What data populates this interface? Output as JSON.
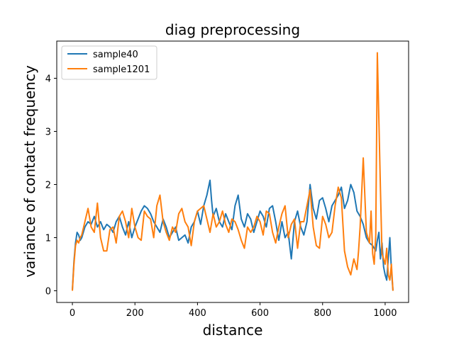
{
  "chart_data": {
    "type": "line",
    "title": "diag preprocessing",
    "xlabel": "distance",
    "ylabel": "variance of contact frequency",
    "xlim": [
      -50,
      1075
    ],
    "ylim": [
      -0.22,
      4.7
    ],
    "xticks": [
      0,
      200,
      400,
      600,
      800,
      1000
    ],
    "yticks": [
      0,
      1,
      2,
      3,
      4
    ],
    "grid": false,
    "legend_position": "upper-left",
    "series": [
      {
        "name": "sample40",
        "color": "#1f77b4",
        "x": [
          0,
          5,
          10,
          15,
          20,
          25,
          30,
          40,
          50,
          60,
          70,
          80,
          90,
          100,
          110,
          120,
          130,
          140,
          150,
          160,
          170,
          180,
          190,
          200,
          210,
          220,
          230,
          240,
          250,
          260,
          270,
          280,
          290,
          300,
          310,
          320,
          330,
          340,
          350,
          360,
          370,
          380,
          390,
          400,
          410,
          420,
          430,
          440,
          445,
          450,
          460,
          470,
          480,
          490,
          500,
          510,
          520,
          530,
          540,
          550,
          560,
          570,
          580,
          590,
          600,
          610,
          620,
          630,
          640,
          650,
          660,
          670,
          680,
          690,
          700,
          710,
          720,
          730,
          740,
          750,
          760,
          770,
          780,
          790,
          800,
          810,
          820,
          830,
          840,
          850,
          860,
          870,
          880,
          890,
          900,
          910,
          920,
          930,
          940,
          950,
          960,
          970,
          975,
          980,
          985,
          990,
          995,
          1000,
          1005,
          1010,
          1015,
          1020,
          1025
        ],
        "y": [
          0.02,
          0.55,
          0.9,
          1.1,
          1.05,
          0.95,
          1.0,
          1.2,
          1.3,
          1.25,
          1.4,
          1.2,
          1.3,
          1.15,
          1.25,
          1.2,
          1.1,
          1.3,
          1.4,
          1.2,
          1.05,
          1.3,
          1.0,
          1.2,
          1.35,
          1.5,
          1.6,
          1.55,
          1.45,
          1.3,
          1.2,
          1.1,
          1.35,
          1.2,
          1.0,
          1.1,
          1.2,
          0.95,
          1.0,
          1.05,
          0.9,
          1.2,
          1.3,
          1.5,
          1.25,
          1.6,
          1.8,
          2.08,
          1.7,
          1.4,
          1.55,
          1.3,
          1.2,
          1.45,
          1.3,
          1.15,
          1.6,
          1.8,
          1.35,
          1.2,
          1.45,
          1.35,
          1.1,
          1.3,
          1.5,
          1.4,
          1.2,
          1.55,
          1.6,
          1.3,
          0.95,
          1.3,
          1.0,
          1.1,
          0.6,
          1.3,
          1.5,
          1.2,
          1.05,
          1.3,
          2.0,
          1.55,
          1.35,
          1.7,
          1.75,
          1.55,
          1.3,
          1.6,
          1.7,
          1.8,
          1.95,
          1.55,
          1.7,
          2.0,
          1.85,
          1.5,
          1.4,
          1.25,
          1.0,
          0.9,
          0.85,
          0.75,
          0.95,
          1.1,
          0.6,
          0.9,
          0.45,
          0.3,
          0.2,
          0.6,
          1.0,
          0.4,
          0.0
        ]
      },
      {
        "name": "sample1201",
        "color": "#ff7f0e",
        "x": [
          0,
          5,
          10,
          15,
          20,
          25,
          30,
          40,
          50,
          60,
          70,
          80,
          90,
          100,
          110,
          120,
          130,
          140,
          150,
          160,
          170,
          180,
          190,
          200,
          210,
          220,
          230,
          240,
          250,
          260,
          270,
          280,
          290,
          300,
          310,
          320,
          330,
          340,
          350,
          360,
          370,
          380,
          390,
          400,
          410,
          420,
          430,
          440,
          450,
          460,
          470,
          480,
          490,
          500,
          510,
          520,
          530,
          540,
          550,
          560,
          570,
          580,
          590,
          600,
          610,
          620,
          630,
          640,
          650,
          660,
          670,
          680,
          690,
          700,
          710,
          720,
          730,
          740,
          750,
          760,
          770,
          780,
          790,
          800,
          810,
          820,
          830,
          840,
          850,
          860,
          870,
          880,
          890,
          900,
          910,
          915,
          920,
          930,
          940,
          950,
          955,
          960,
          965,
          970,
          975,
          980,
          985,
          990,
          1000,
          1005,
          1010,
          1015,
          1020,
          1025
        ],
        "y": [
          0.0,
          0.5,
          0.85,
          0.95,
          0.9,
          1.0,
          1.05,
          1.3,
          1.55,
          1.2,
          1.1,
          1.65,
          1.0,
          0.75,
          0.75,
          1.15,
          1.2,
          0.9,
          1.4,
          1.5,
          1.3,
          1.0,
          1.55,
          1.2,
          1.0,
          0.95,
          1.5,
          1.4,
          1.35,
          1.0,
          1.6,
          1.8,
          1.3,
          1.1,
          0.95,
          1.2,
          1.1,
          1.45,
          1.55,
          1.3,
          1.2,
          0.85,
          1.3,
          1.5,
          1.55,
          1.6,
          1.35,
          1.1,
          1.45,
          1.2,
          1.3,
          1.5,
          1.25,
          1.1,
          1.35,
          1.3,
          1.15,
          0.95,
          0.8,
          1.2,
          1.1,
          1.2,
          1.4,
          1.3,
          1.05,
          1.5,
          1.45,
          1.1,
          0.9,
          1.2,
          1.45,
          1.6,
          1.0,
          1.25,
          1.35,
          0.8,
          1.3,
          1.3,
          1.6,
          1.9,
          1.2,
          0.85,
          0.8,
          1.4,
          1.25,
          1.0,
          1.1,
          1.6,
          1.95,
          1.75,
          0.75,
          0.45,
          0.3,
          0.6,
          0.4,
          0.75,
          1.2,
          2.5,
          1.1,
          0.9,
          1.5,
          0.7,
          0.5,
          1.05,
          4.48,
          3.2,
          1.9,
          0.7,
          0.5,
          0.8,
          0.3,
          0.2,
          0.5,
          0.0
        ]
      }
    ]
  }
}
